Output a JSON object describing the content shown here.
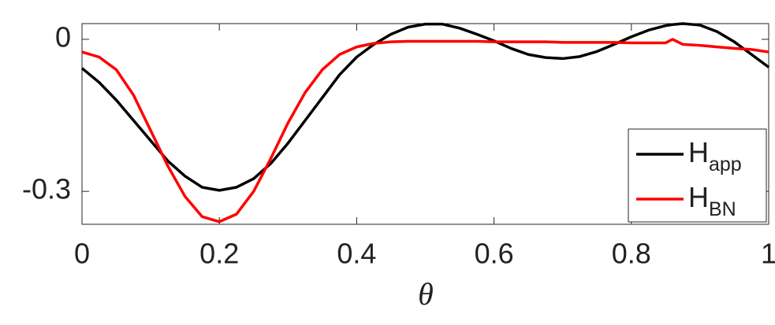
{
  "chart_data": {
    "type": "line",
    "x": [
      0,
      0.025,
      0.05,
      0.075,
      0.1,
      0.125,
      0.15,
      0.175,
      0.2,
      0.225,
      0.25,
      0.275,
      0.3,
      0.325,
      0.35,
      0.375,
      0.4,
      0.425,
      0.45,
      0.475,
      0.5,
      0.525,
      0.55,
      0.575,
      0.6,
      0.625,
      0.65,
      0.675,
      0.7,
      0.725,
      0.75,
      0.775,
      0.8,
      0.825,
      0.85,
      0.86,
      0.875,
      0.9,
      0.925,
      0.95,
      0.975,
      1
    ],
    "series": [
      {
        "name": "Happ",
        "color": "#000000",
        "values": [
          -0.057,
          -0.085,
          -0.12,
          -0.16,
          -0.2,
          -0.24,
          -0.27,
          -0.292,
          -0.298,
          -0.292,
          -0.275,
          -0.245,
          -0.205,
          -0.16,
          -0.115,
          -0.07,
          -0.035,
          -0.01,
          0.01,
          0.024,
          0.03,
          0.03,
          0.022,
          0.01,
          -0.003,
          -0.018,
          -0.03,
          -0.036,
          -0.038,
          -0.034,
          -0.024,
          -0.01,
          0.005,
          0.018,
          0.027,
          0.029,
          0.031,
          0.028,
          0.015,
          -0.005,
          -0.03,
          -0.055
        ]
      },
      {
        "name": "HBN",
        "color": "#ff0000",
        "values": [
          -0.025,
          -0.035,
          -0.06,
          -0.11,
          -0.18,
          -0.25,
          -0.31,
          -0.35,
          -0.36,
          -0.345,
          -0.3,
          -0.235,
          -0.165,
          -0.105,
          -0.06,
          -0.03,
          -0.015,
          -0.008,
          -0.005,
          -0.004,
          -0.004,
          -0.004,
          -0.004,
          -0.004,
          -0.005,
          -0.005,
          -0.005,
          -0.005,
          -0.006,
          -0.006,
          -0.006,
          -0.006,
          -0.007,
          -0.007,
          -0.007,
          0.0,
          -0.01,
          -0.012,
          -0.015,
          -0.018,
          -0.02,
          -0.025
        ]
      }
    ],
    "xlabel": "θ",
    "xlim": [
      0,
      1
    ],
    "xticks": [
      0,
      0.2,
      0.4,
      0.6,
      0.8,
      1
    ],
    "ylim": [
      -0.365,
      0.031
    ],
    "yticks": [
      -0.3,
      0
    ],
    "legend": "lower right"
  }
}
